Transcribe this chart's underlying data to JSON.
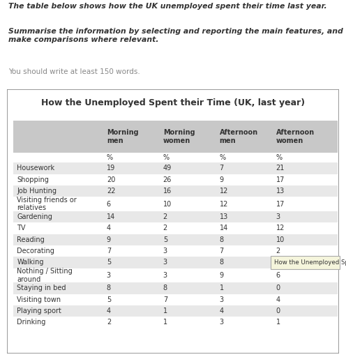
{
  "title": "How the Unemployed Spent their Time (UK, last year)",
  "prompt_line1": "The table below shows how the UK unemployed spent their time last year.",
  "prompt_line2": "Summarise the information by selecting and reporting the main features, and\nmake comparisons where relevant.",
  "prompt_line3": "You should write at least 150 words.",
  "col_headers": [
    "Morning\nmen",
    "Morning\nwomen",
    "Afternoon\nmen",
    "Afternoon\nwomen"
  ],
  "subheaders": [
    "%",
    "%",
    "%",
    "%"
  ],
  "rows": [
    [
      "Housework",
      "19",
      "49",
      "7",
      "21"
    ],
    [
      "Shopping",
      "20",
      "26",
      "9",
      "17"
    ],
    [
      "Job Hunting",
      "22",
      "16",
      "12",
      "13"
    ],
    [
      "Visiting friends or\nrelatives",
      "6",
      "10",
      "12",
      "17"
    ],
    [
      "Gardening",
      "14",
      "2",
      "13",
      "3"
    ],
    [
      "TV",
      "4",
      "2",
      "14",
      "12"
    ],
    [
      "Reading",
      "9",
      "5",
      "8",
      "10"
    ],
    [
      "Decorating",
      "7",
      "3",
      "7",
      "2"
    ],
    [
      "Walking",
      "5",
      "3",
      "8",
      ""
    ],
    [
      "Nothing / Sitting\naround",
      "3",
      "3",
      "9",
      "6"
    ],
    [
      "Staying in bed",
      "8",
      "8",
      "1",
      "0"
    ],
    [
      "Visiting town",
      "5",
      "7",
      "3",
      "4"
    ],
    [
      "Playing sport",
      "4",
      "1",
      "4",
      "0"
    ],
    [
      "Drinking",
      "2",
      "1",
      "3",
      "1"
    ]
  ],
  "tooltip_text": "How the Unemployed Spend their",
  "bg_color": "#ffffff",
  "header_bg": "#c8c8c8",
  "row_alt_bg": "#e8e8e8",
  "row_white_bg": "#ffffff",
  "tooltip_bg": "#f5f5dc",
  "border_color": "#888888",
  "text_color": "#333333",
  "prompt3_color": "#888888",
  "fig_width": 4.96,
  "fig_height": 5.12,
  "dpi": 100
}
